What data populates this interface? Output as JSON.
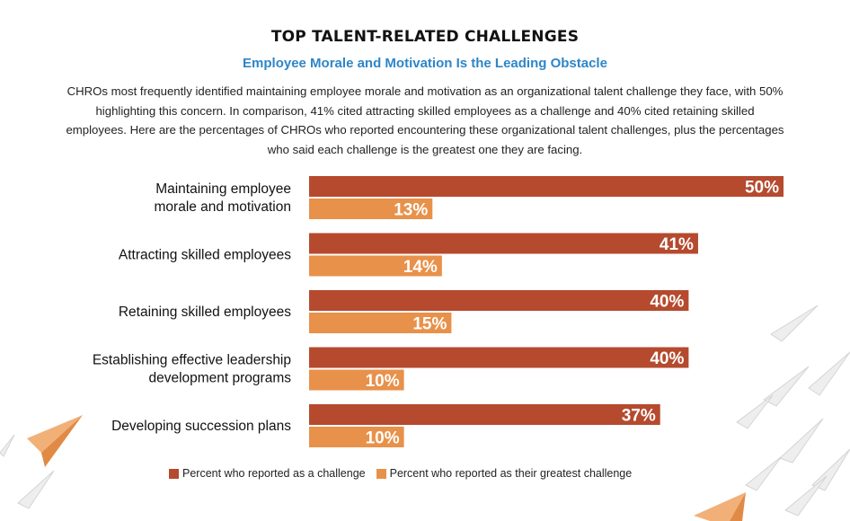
{
  "title": "TOP TALENT-RELATED CHALLENGES",
  "subtitle": "Employee Morale and Motivation Is the Leading Obstacle",
  "description": "CHROs most frequently identified maintaining employee morale and motivation as an organizational talent challenge they face, with 50% highlighting this concern. In comparison, 41% cited attracting skilled employees as a challenge and 40% cited retaining skilled employees. Here are the percentages of CHROs who reported encountering these organizational talent challenges, plus the percentages who said each challenge is the greatest one they are facing.",
  "colors": {
    "challenge": "#b54a2e",
    "greatest": "#e8914a",
    "subtitle": "#2e86c8"
  },
  "chart_data": {
    "type": "bar",
    "orientation": "horizontal",
    "categories": [
      [
        "Maintaining employee",
        "morale and motivation"
      ],
      [
        "Attracting skilled employees"
      ],
      [
        "Retaining skilled employees"
      ],
      [
        "Establishing effective leadership",
        "development programs"
      ],
      [
        "Developing succession plans"
      ]
    ],
    "series": [
      {
        "name": "Percent who reported as a challenge",
        "values": [
          50,
          41,
          40,
          40,
          37
        ]
      },
      {
        "name": "Percent who reported as their greatest challenge",
        "values": [
          13,
          14,
          15,
          10,
          10
        ]
      }
    ],
    "value_suffix": "%",
    "xlim": [
      0,
      50
    ],
    "grid": false,
    "legend_position": "bottom"
  },
  "legend": [
    {
      "label": "Percent who reported as a challenge",
      "color": "#b54a2e"
    },
    {
      "label": "Percent who reported as their greatest challenge",
      "color": "#e8914a"
    }
  ]
}
